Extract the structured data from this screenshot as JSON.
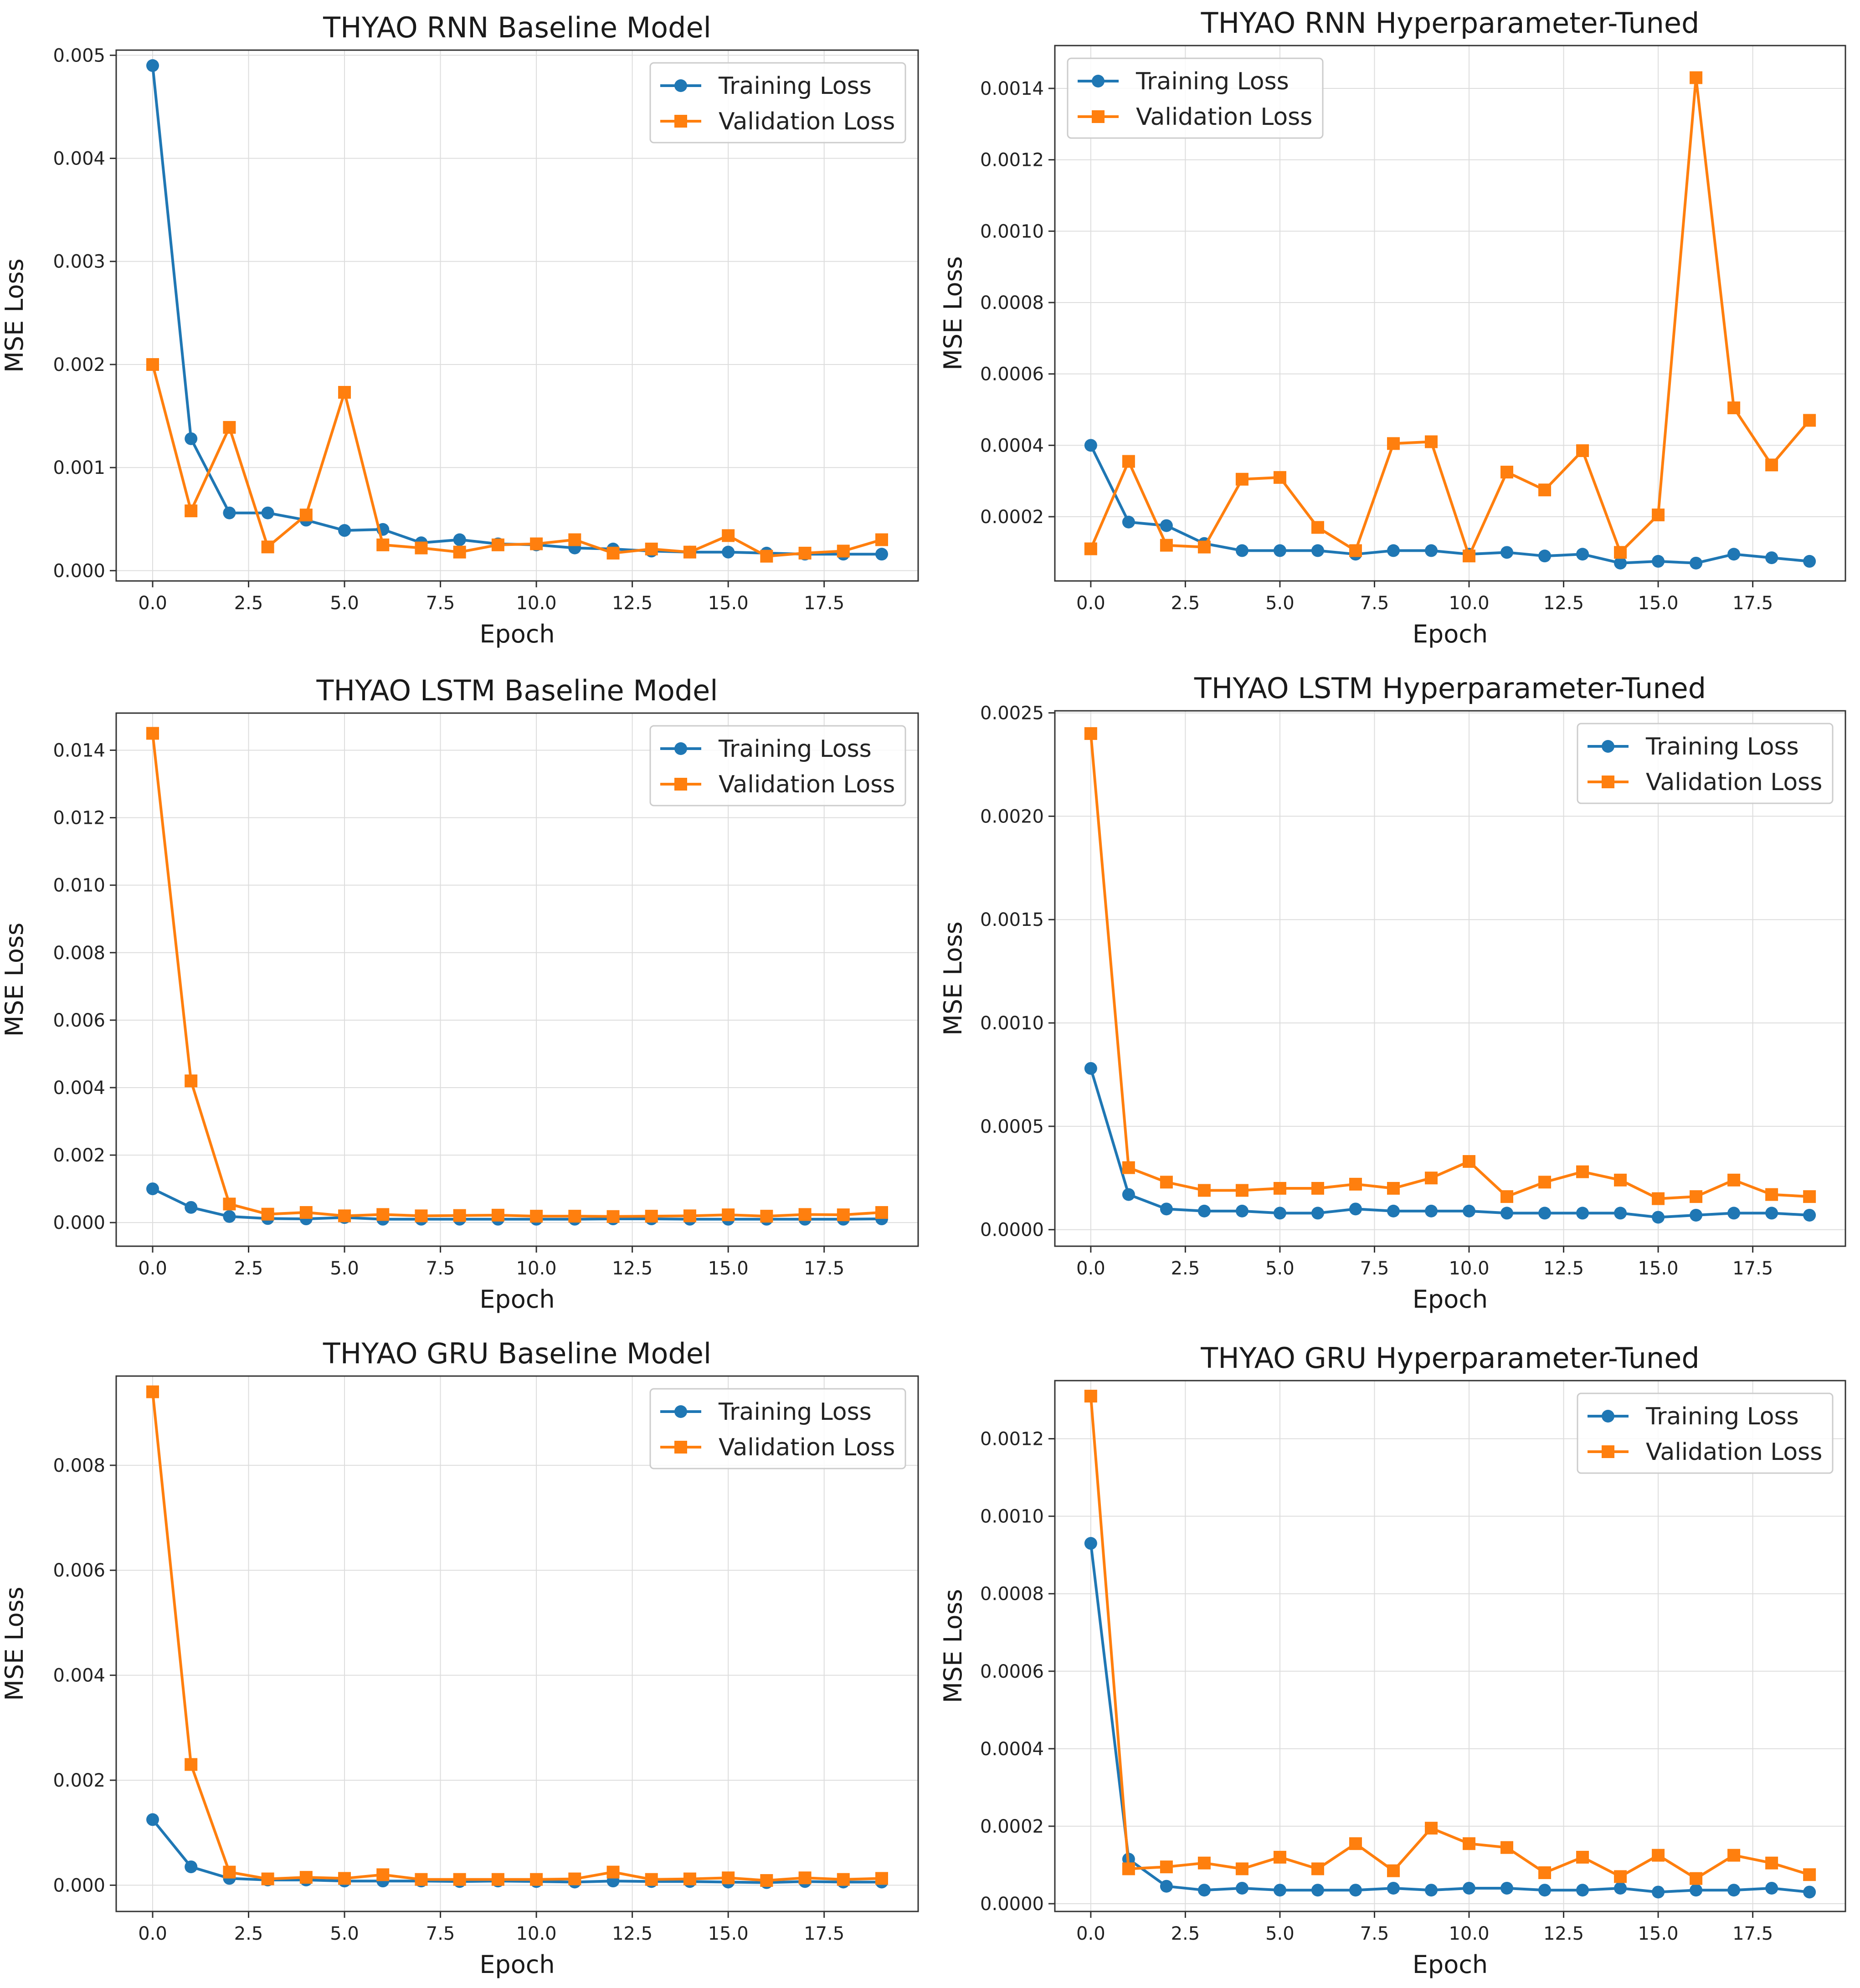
{
  "colors": {
    "train": "#1f77b4",
    "val": "#ff7f0e",
    "grid": "#dddddd",
    "frame": "#333333"
  },
  "chart_data": [
    {
      "type": "line",
      "title": "THYAO RNN Baseline Model",
      "xlabel": "Epoch",
      "ylabel": "MSE Loss",
      "xlim": [
        -0.95,
        19.95
      ],
      "ylim": [
        -0.0001,
        0.00505
      ],
      "xticks": [
        0,
        2.5,
        5,
        7.5,
        10,
        12.5,
        15,
        17.5
      ],
      "xtick_labels": [
        "0.0",
        "2.5",
        "5.0",
        "7.5",
        "10.0",
        "12.5",
        "15.0",
        "17.5"
      ],
      "yticks": [
        0,
        0.001,
        0.002,
        0.003,
        0.004,
        0.005
      ],
      "ytick_labels": [
        "0.000",
        "0.001",
        "0.002",
        "0.003",
        "0.004",
        "0.005"
      ],
      "legend_position": "top-right",
      "grid": true,
      "x": [
        0,
        1,
        2,
        3,
        4,
        5,
        6,
        7,
        8,
        9,
        10,
        11,
        12,
        13,
        14,
        15,
        16,
        17,
        18,
        19
      ],
      "series": [
        {
          "name": "Training Loss",
          "marker": "circle",
          "values": [
            0.0049,
            0.00128,
            0.00056,
            0.00056,
            0.00049,
            0.00039,
            0.0004,
            0.00027,
            0.0003,
            0.00026,
            0.00025,
            0.00022,
            0.00021,
            0.00019,
            0.00018,
            0.00018,
            0.00017,
            0.00016,
            0.00016,
            0.00016
          ]
        },
        {
          "name": "Validation Loss",
          "marker": "square",
          "values": [
            0.002,
            0.00058,
            0.00139,
            0.00023,
            0.00054,
            0.00173,
            0.00025,
            0.00022,
            0.00018,
            0.00025,
            0.00026,
            0.0003,
            0.00017,
            0.00021,
            0.00018,
            0.00034,
            0.00014,
            0.00017,
            0.00019,
            0.0003
          ]
        }
      ]
    },
    {
      "type": "line",
      "title": "THYAO RNN Hyperparameter-Tuned",
      "xlabel": "Epoch",
      "ylabel": "MSE Loss",
      "xlim": [
        -0.95,
        19.95
      ],
      "ylim": [
        2e-05,
        0.00152
      ],
      "xticks": [
        0,
        2.5,
        5,
        7.5,
        10,
        12.5,
        15,
        17.5
      ],
      "xtick_labels": [
        "0.0",
        "2.5",
        "5.0",
        "7.5",
        "10.0",
        "12.5",
        "15.0",
        "17.5"
      ],
      "yticks": [
        0.0002,
        0.0004,
        0.0006,
        0.0008,
        0.001,
        0.0012,
        0.0014
      ],
      "ytick_labels": [
        "0.0002",
        "0.0004",
        "0.0006",
        "0.0008",
        "0.0010",
        "0.0012",
        "0.0014"
      ],
      "legend_position": "top-left",
      "grid": true,
      "x": [
        0,
        1,
        2,
        3,
        4,
        5,
        6,
        7,
        8,
        9,
        10,
        11,
        12,
        13,
        14,
        15,
        16,
        17,
        18,
        19
      ],
      "series": [
        {
          "name": "Training Loss",
          "marker": "circle",
          "values": [
            0.0004,
            0.000185,
            0.000175,
            0.000125,
            0.000105,
            0.000105,
            0.000105,
            9.5e-05,
            0.000105,
            0.000105,
            9.5e-05,
            0.0001,
            9e-05,
            9.5e-05,
            7e-05,
            7.5e-05,
            7e-05,
            9.5e-05,
            8.5e-05,
            7.5e-05
          ]
        },
        {
          "name": "Validation Loss",
          "marker": "square",
          "values": [
            0.00011,
            0.000355,
            0.00012,
            0.000115,
            0.000305,
            0.00031,
            0.00017,
            0.000105,
            0.000405,
            0.00041,
            9e-05,
            0.000325,
            0.000275,
            0.000385,
            0.0001,
            0.000205,
            0.00143,
            0.000505,
            0.000345,
            0.00047
          ]
        }
      ]
    },
    {
      "type": "line",
      "title": "THYAO LSTM Baseline Model",
      "xlabel": "Epoch",
      "ylabel": "MSE Loss",
      "xlim": [
        -0.95,
        19.95
      ],
      "ylim": [
        -0.0007,
        0.0151
      ],
      "xticks": [
        0,
        2.5,
        5,
        7.5,
        10,
        12.5,
        15,
        17.5
      ],
      "xtick_labels": [
        "0.0",
        "2.5",
        "5.0",
        "7.5",
        "10.0",
        "12.5",
        "15.0",
        "17.5"
      ],
      "yticks": [
        0,
        0.002,
        0.004,
        0.006,
        0.008,
        0.01,
        0.012,
        0.014
      ],
      "ytick_labels": [
        "0.000",
        "0.002",
        "0.004",
        "0.006",
        "0.008",
        "0.010",
        "0.012",
        "0.014"
      ],
      "legend_position": "top-right",
      "grid": true,
      "x": [
        0,
        1,
        2,
        3,
        4,
        5,
        6,
        7,
        8,
        9,
        10,
        11,
        12,
        13,
        14,
        15,
        16,
        17,
        18,
        19
      ],
      "series": [
        {
          "name": "Training Loss",
          "marker": "circle",
          "values": [
            0.001,
            0.00045,
            0.00018,
            0.00012,
            0.00011,
            0.00015,
            0.0001,
            0.0001,
            0.0001,
            0.0001,
            0.0001,
            0.0001,
            0.00011,
            0.00011,
            0.0001,
            0.0001,
            0.0001,
            0.0001,
            0.0001,
            0.00011
          ]
        },
        {
          "name": "Validation Loss",
          "marker": "square",
          "values": [
            0.0145,
            0.0042,
            0.00055,
            0.00025,
            0.0003,
            0.0002,
            0.00024,
            0.0002,
            0.00021,
            0.00022,
            0.00019,
            0.00019,
            0.00018,
            0.00019,
            0.0002,
            0.00023,
            0.00019,
            0.00024,
            0.00023,
            0.0003
          ]
        }
      ]
    },
    {
      "type": "line",
      "title": "THYAO LSTM Hyperparameter-Tuned",
      "xlabel": "Epoch",
      "ylabel": "MSE Loss",
      "xlim": [
        -0.95,
        19.95
      ],
      "ylim": [
        -8e-05,
        0.00251
      ],
      "xticks": [
        0,
        2.5,
        5,
        7.5,
        10,
        12.5,
        15,
        17.5
      ],
      "xtick_labels": [
        "0.0",
        "2.5",
        "5.0",
        "7.5",
        "10.0",
        "12.5",
        "15.0",
        "17.5"
      ],
      "yticks": [
        0,
        0.0005,
        0.001,
        0.0015,
        0.002,
        0.0025
      ],
      "ytick_labels": [
        "0.0000",
        "0.0005",
        "0.0010",
        "0.0015",
        "0.0020",
        "0.0025"
      ],
      "legend_position": "top-right",
      "grid": true,
      "x": [
        0,
        1,
        2,
        3,
        4,
        5,
        6,
        7,
        8,
        9,
        10,
        11,
        12,
        13,
        14,
        15,
        16,
        17,
        18,
        19
      ],
      "series": [
        {
          "name": "Training Loss",
          "marker": "circle",
          "values": [
            0.00078,
            0.00017,
            0.0001,
            9e-05,
            9e-05,
            8e-05,
            8e-05,
            0.0001,
            9e-05,
            9e-05,
            9e-05,
            8e-05,
            8e-05,
            8e-05,
            8e-05,
            6e-05,
            7e-05,
            8e-05,
            8e-05,
            7e-05
          ]
        },
        {
          "name": "Validation Loss",
          "marker": "square",
          "values": [
            0.0024,
            0.0003,
            0.00023,
            0.00019,
            0.00019,
            0.0002,
            0.0002,
            0.00022,
            0.0002,
            0.00025,
            0.00033,
            0.00016,
            0.00023,
            0.00028,
            0.00024,
            0.00015,
            0.00016,
            0.00024,
            0.00017,
            0.00016
          ]
        }
      ]
    },
    {
      "type": "line",
      "title": "THYAO GRU Baseline Model",
      "xlabel": "Epoch",
      "ylabel": "MSE Loss",
      "xlim": [
        -0.95,
        19.95
      ],
      "ylim": [
        -0.0005,
        0.0097
      ],
      "xticks": [
        0,
        2.5,
        5,
        7.5,
        10,
        12.5,
        15,
        17.5
      ],
      "xtick_labels": [
        "0.0",
        "2.5",
        "5.0",
        "7.5",
        "10.0",
        "12.5",
        "15.0",
        "17.5"
      ],
      "yticks": [
        0,
        0.002,
        0.004,
        0.006,
        0.008
      ],
      "ytick_labels": [
        "0.000",
        "0.002",
        "0.004",
        "0.006",
        "0.008"
      ],
      "legend_position": "top-right",
      "grid": true,
      "x": [
        0,
        1,
        2,
        3,
        4,
        5,
        6,
        7,
        8,
        9,
        10,
        11,
        12,
        13,
        14,
        15,
        16,
        17,
        18,
        19
      ],
      "series": [
        {
          "name": "Training Loss",
          "marker": "circle",
          "values": [
            0.00125,
            0.00035,
            0.00013,
            0.0001,
            0.0001,
            8e-05,
            8e-05,
            8e-05,
            7e-05,
            8e-05,
            7e-05,
            6e-05,
            8e-05,
            7e-05,
            7e-05,
            6e-05,
            5e-05,
            7e-05,
            6e-05,
            6e-05
          ]
        },
        {
          "name": "Validation Loss",
          "marker": "square",
          "values": [
            0.0094,
            0.0023,
            0.00025,
            0.00012,
            0.00015,
            0.00013,
            0.0002,
            0.00011,
            0.00011,
            0.00011,
            0.00011,
            0.00012,
            0.00025,
            0.00011,
            0.00012,
            0.00014,
            9e-05,
            0.00014,
            0.00011,
            0.00013
          ]
        }
      ]
    },
    {
      "type": "line",
      "title": "THYAO GRU Hyperparameter-Tuned",
      "xlabel": "Epoch",
      "ylabel": "MSE Loss",
      "xlim": [
        -0.95,
        19.95
      ],
      "ylim": [
        -2e-05,
        0.00135
      ],
      "xticks": [
        0,
        2.5,
        5,
        7.5,
        10,
        12.5,
        15,
        17.5
      ],
      "xtick_labels": [
        "0.0",
        "2.5",
        "5.0",
        "7.5",
        "10.0",
        "12.5",
        "15.0",
        "17.5"
      ],
      "yticks": [
        0,
        0.0002,
        0.0004,
        0.0006,
        0.0008,
        0.001,
        0.0012
      ],
      "ytick_labels": [
        "0.0000",
        "0.0002",
        "0.0004",
        "0.0006",
        "0.0008",
        "0.0010",
        "0.0012"
      ],
      "legend_position": "top-right",
      "grid": true,
      "x": [
        0,
        1,
        2,
        3,
        4,
        5,
        6,
        7,
        8,
        9,
        10,
        11,
        12,
        13,
        14,
        15,
        16,
        17,
        18,
        19
      ],
      "series": [
        {
          "name": "Training Loss",
          "marker": "circle",
          "values": [
            0.00093,
            0.000115,
            4.5e-05,
            3.5e-05,
            4e-05,
            3.5e-05,
            3.5e-05,
            3.5e-05,
            4e-05,
            3.5e-05,
            4e-05,
            4e-05,
            3.5e-05,
            3.5e-05,
            4e-05,
            3e-05,
            3.5e-05,
            3.5e-05,
            4e-05,
            3e-05
          ]
        },
        {
          "name": "Validation Loss",
          "marker": "square",
          "values": [
            0.00131,
            9e-05,
            9.5e-05,
            0.000105,
            9e-05,
            0.00012,
            9e-05,
            0.000155,
            8.5e-05,
            0.000195,
            0.000155,
            0.000145,
            8e-05,
            0.00012,
            7e-05,
            0.000125,
            6.5e-05,
            0.000125,
            0.000105,
            7.5e-05
          ]
        }
      ]
    }
  ]
}
